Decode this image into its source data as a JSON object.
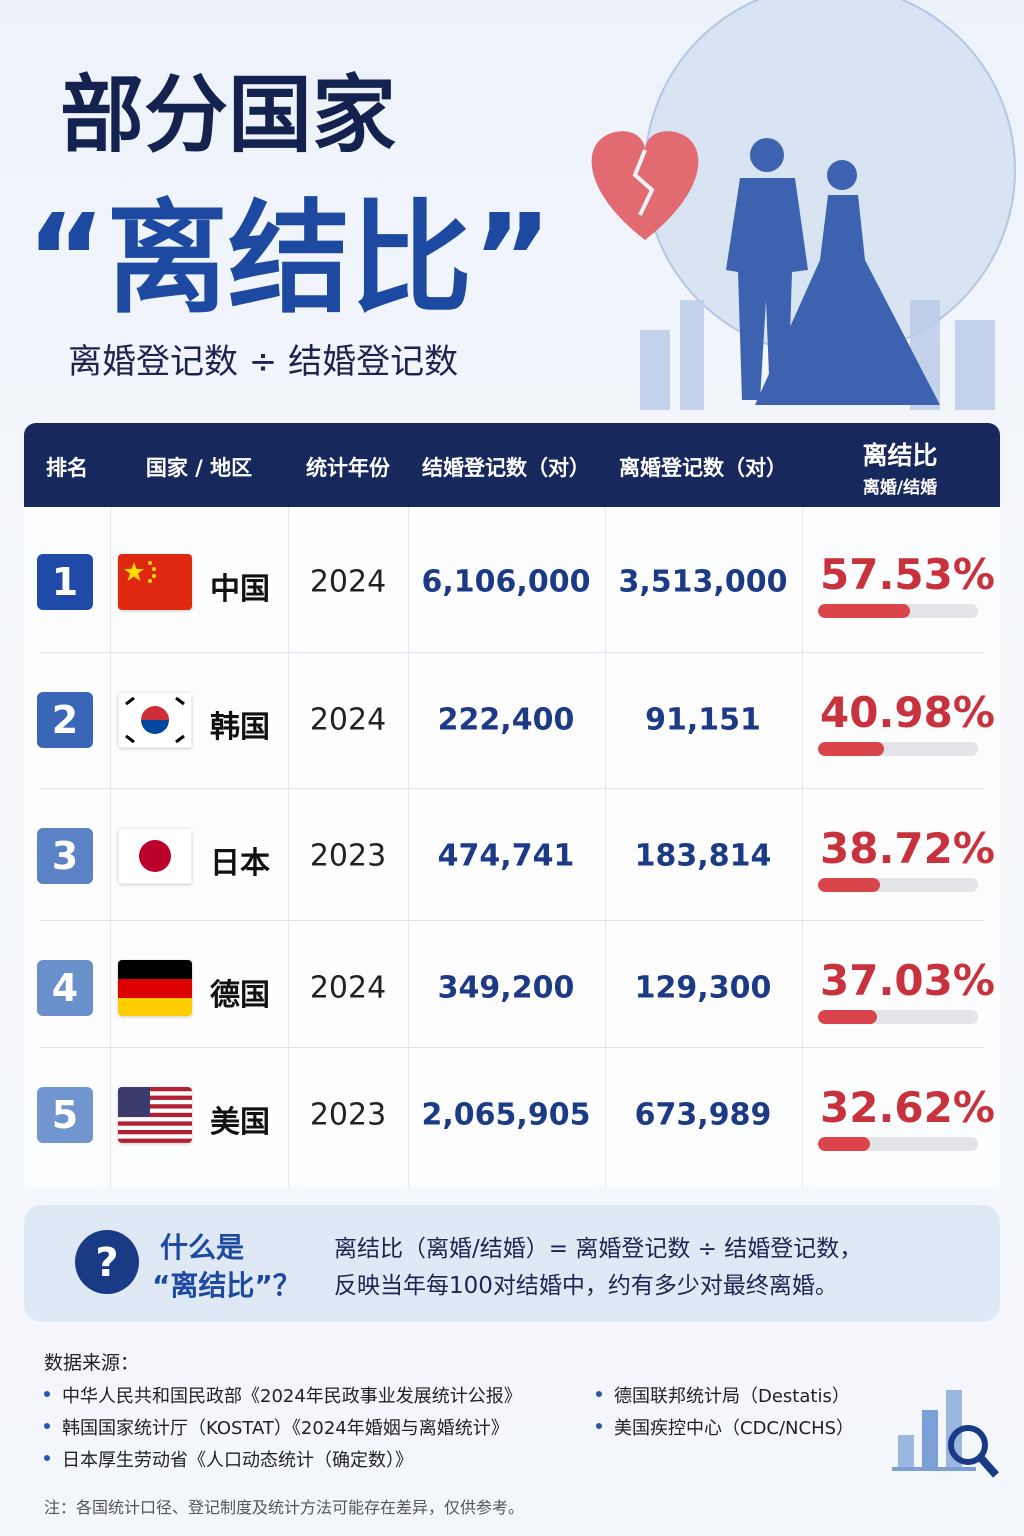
{
  "header": {
    "title_line1": "部分国家",
    "title_line2": "“离结比”",
    "subtitle": "离婚登记数 ÷ 结婚登记数"
  },
  "table": {
    "columns": [
      "排名",
      "国家 / 地区",
      "统计年份",
      "结婚登记数（对）",
      "离婚登记数（对）",
      "离结比"
    ],
    "ratio_subheader": "离婚/结婚",
    "rows": [
      {
        "rank": "1",
        "country": "中国",
        "year": "2024",
        "marriages": "6,106,000",
        "divorces": "3,513,000",
        "ratio": {
          "value": 57.53,
          "label": "57.53%"
        }
      },
      {
        "rank": "2",
        "country": "韩国",
        "year": "2024",
        "marriages": "222,400",
        "divorces": "91,151",
        "ratio": {
          "value": 40.98,
          "label": "40.98%"
        }
      },
      {
        "rank": "3",
        "country": "日本",
        "year": "2023",
        "marriages": "474,741",
        "divorces": "183,814",
        "ratio": {
          "value": 38.72,
          "label": "38.72%"
        }
      },
      {
        "rank": "4",
        "country": "德国",
        "year": "2024",
        "marriages": "349,200",
        "divorces": "129,300",
        "ratio": {
          "value": 37.03,
          "label": "37.03%"
        }
      },
      {
        "rank": "5",
        "country": "美国",
        "year": "2023",
        "marriages": "2,065,905",
        "divorces": "673,989",
        "ratio": {
          "value": 32.62,
          "label": "32.62%"
        }
      }
    ]
  },
  "explainer": {
    "question_line1": "什么是",
    "question_line2": "“离结比”？",
    "text_line1": "离结比（离婚/结婚）= 离婚登记数 ÷ 结婚登记数，",
    "text_line2": "反映当年每100对结婚中，约有多少对最终离婚。"
  },
  "sources": {
    "heading": "数据来源：",
    "items": [
      "中华人民共和国民政部《2024年民政事业发展统计公报》",
      "韩国国家统计厅（KOSTAT）《2024年婚姻与离婚统计》",
      "日本厚生劳动省《人口动态统计（确定数）》",
      "德国联邦统计局（Destatis）",
      "美国疾控中心（CDC/NCHS）"
    ]
  },
  "note": "注：各国统计口径、登记制度及统计方法可能存在差异，仅供参考。"
}
